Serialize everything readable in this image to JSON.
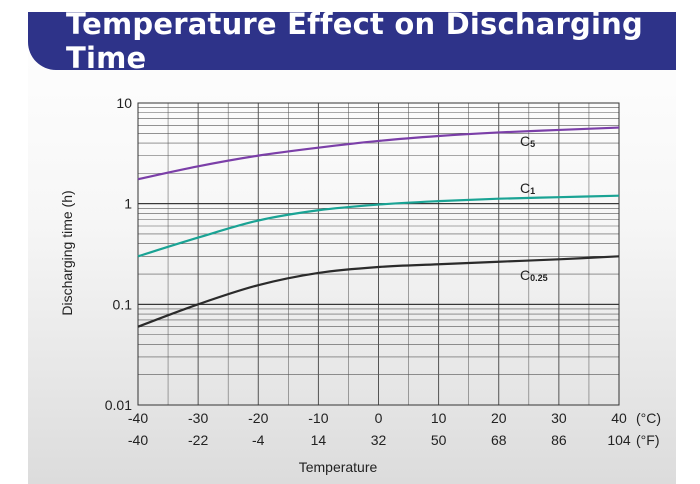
{
  "page": {
    "title": "Temperature Effect on Discharging Time",
    "title_bar_color": "#2e3389"
  },
  "chart_data": {
    "type": "line",
    "title": "Temperature Effect on Discharging Time",
    "xlabel": "Temperature",
    "ylabel": "Discharging time (h)",
    "x_unit_celsius": "(°C)",
    "x_unit_fahrenheit": "(°F)",
    "xlim": [
      -40,
      40
    ],
    "ylim": [
      0.01,
      10
    ],
    "y_scale": "log",
    "grid": true,
    "x_ticks_celsius": [
      "-40",
      "-30",
      "-20",
      "-10",
      "0",
      "10",
      "20",
      "30",
      "40"
    ],
    "x_ticks_fahrenheit": [
      "-40",
      "-22",
      "-4",
      "14",
      "32",
      "50",
      "68",
      "86",
      "104"
    ],
    "y_ticks": [
      "0.01",
      "0.1",
      "1",
      "10"
    ],
    "x_tick_values": [
      -40,
      -30,
      -20,
      -10,
      0,
      10,
      20,
      30,
      40
    ],
    "y_tick_values": [
      0.01,
      0.1,
      1,
      10
    ],
    "series": [
      {
        "label_main": "C",
        "label_sub": "5",
        "color": "#7b3fa8",
        "x": [
          -40,
          -30,
          -20,
          -10,
          0,
          10,
          20,
          30,
          40
        ],
        "y": [
          1.75,
          2.35,
          3.0,
          3.6,
          4.2,
          4.7,
          5.1,
          5.4,
          5.7
        ]
      },
      {
        "label_main": "C",
        "label_sub": "1",
        "color": "#1aa394",
        "x": [
          -40,
          -30,
          -20,
          -10,
          0,
          10,
          20,
          30,
          40
        ],
        "y": [
          0.3,
          0.46,
          0.68,
          0.86,
          0.98,
          1.06,
          1.12,
          1.16,
          1.2
        ]
      },
      {
        "label_main": "C",
        "label_sub": "0.25",
        "color": "#2b2b2b",
        "x": [
          -40,
          -30,
          -20,
          -10,
          0,
          10,
          20,
          30,
          40
        ],
        "y": [
          0.06,
          0.1,
          0.155,
          0.205,
          0.235,
          0.25,
          0.265,
          0.28,
          0.3
        ]
      }
    ]
  }
}
